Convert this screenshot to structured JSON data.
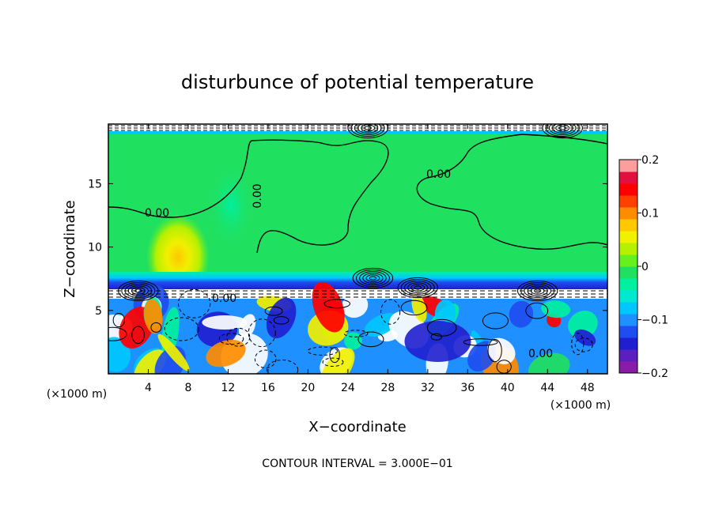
{
  "chart_data": {
    "type": "heatmap",
    "title": "disturbunce of potential temperature",
    "xlabel": "X−coordinate",
    "ylabel": "Z−coordinate",
    "x_unit": "(×1000 m)",
    "x_unit_right": "(×1000 m)",
    "xlim": [
      0,
      50
    ],
    "ylim": [
      0,
      19.7
    ],
    "x_ticks": [
      4,
      8,
      12,
      16,
      20,
      24,
      28,
      32,
      36,
      40,
      44,
      48
    ],
    "y_ticks": [
      5,
      10,
      15
    ],
    "contour_labels": [
      "0.00",
      "0.00",
      "0.00",
      "0.00",
      "0.00",
      "0.00",
      "0.00"
    ],
    "footer": "CONTOUR INTERVAL = 3.000E−01",
    "colorbar": {
      "range": [
        -0.2,
        0.2
      ],
      "tick_values": [
        0.2,
        0.1,
        0,
        -0.1,
        -0.2
      ],
      "tick_labels": [
        "0.2",
        "0.1",
        "0",
        "−0.1",
        "−0.2"
      ],
      "colors": [
        "#8a1aa8",
        "#5b1fbf",
        "#1f1fd0",
        "#1e4ef0",
        "#1e90ff",
        "#00c8ff",
        "#00e8d0",
        "#00f0a0",
        "#20e060",
        "#66f020",
        "#b4f000",
        "#f0f000",
        "#ffc800",
        "#ff8c00",
        "#ff4000",
        "#ff0000",
        "#e01040",
        "#ff9c9c"
      ]
    },
    "fields": {
      "upper_region_value": 0.0,
      "inversion_layer_z": 7.2,
      "warm_blob": {
        "x": 7,
        "z": 9,
        "value": 0.1
      }
    }
  }
}
